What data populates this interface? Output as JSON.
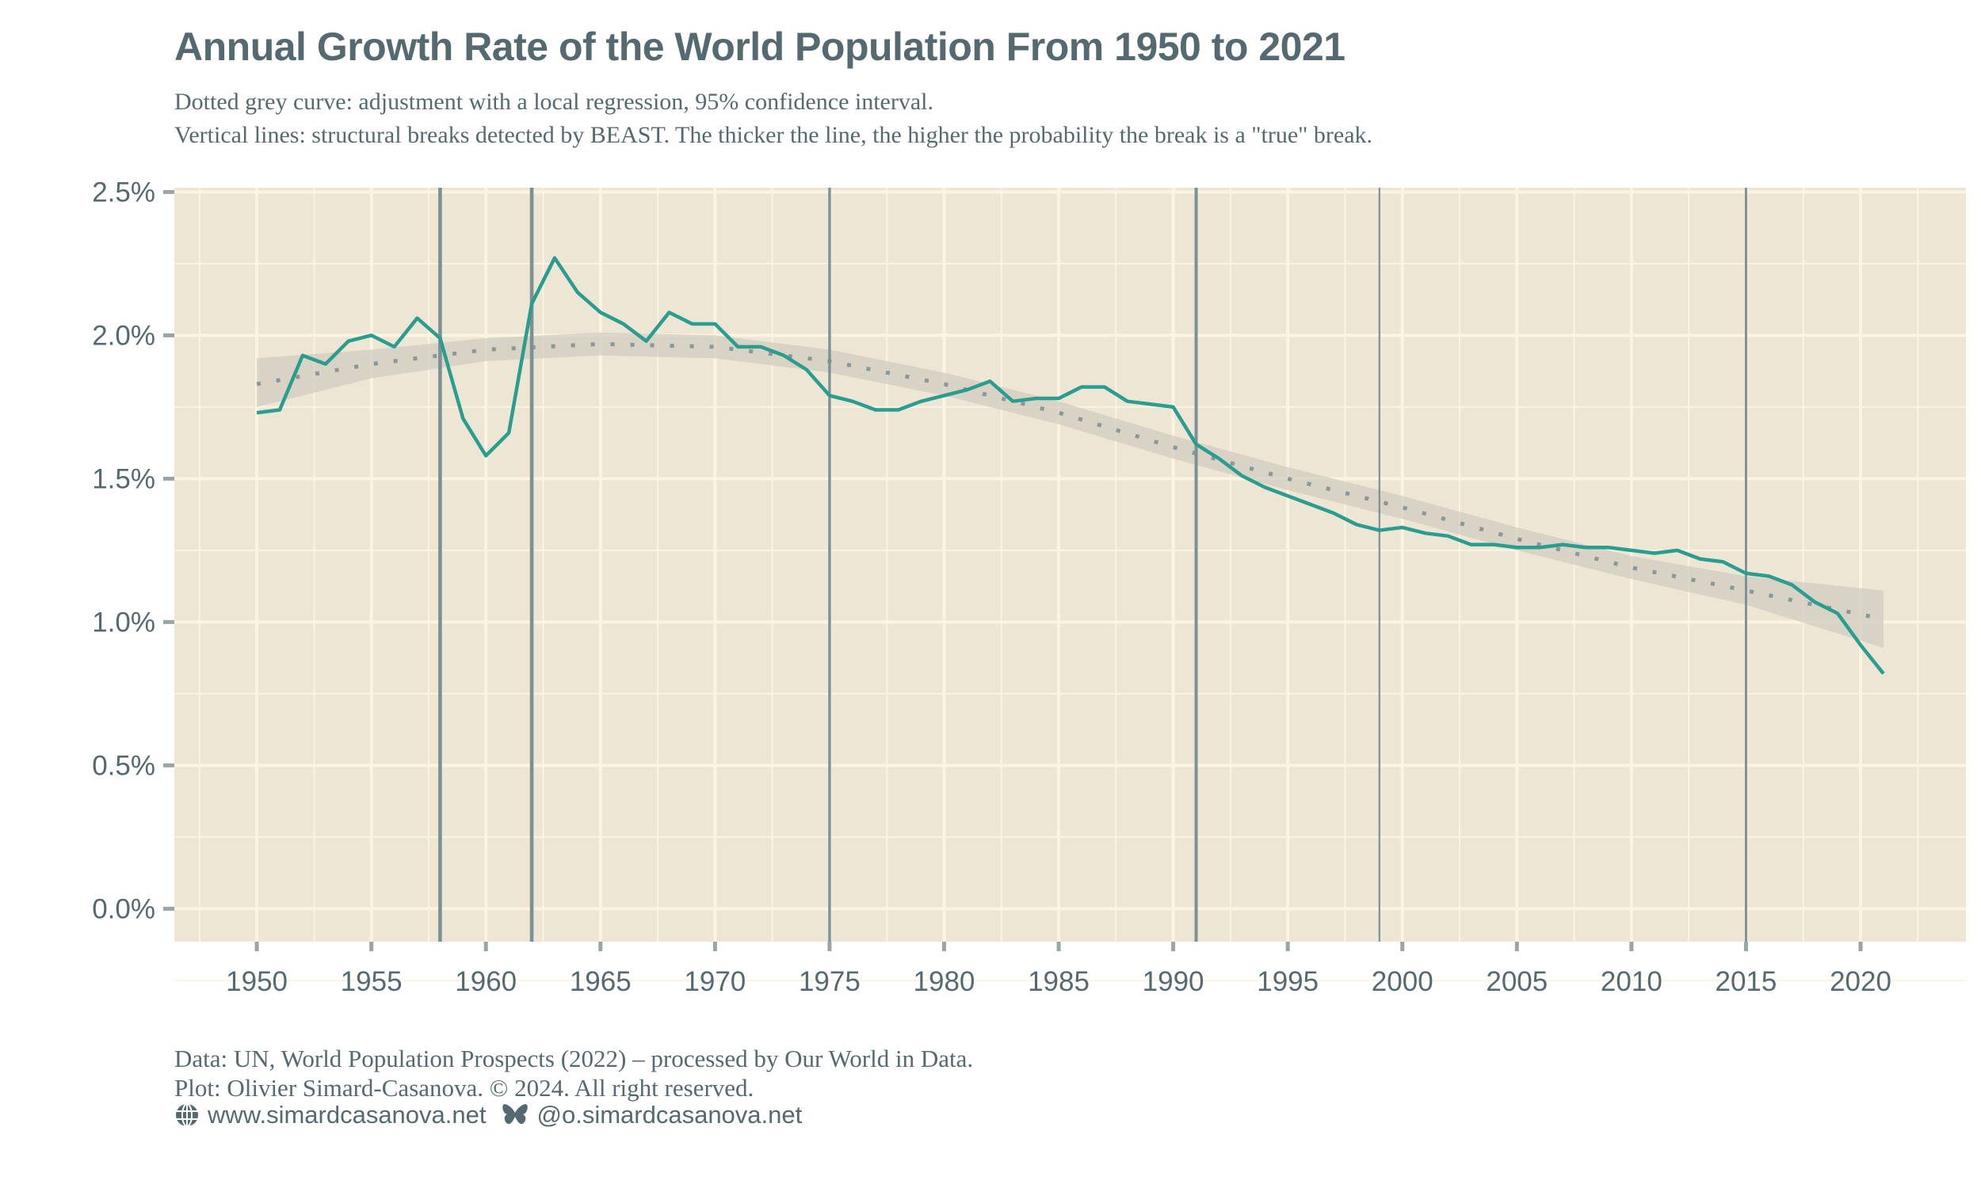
{
  "title": "Annual Growth Rate of the World Population From 1950 to 2021",
  "subtitle": [
    "Dotted grey curve: adjustment with a local regression, 95% confidence interval.",
    "Vertical lines: structural breaks detected by BEAST. The thicker the line, the higher the probability the break is a \"true\" break."
  ],
  "caption": [
    "Data: UN, World Population Prospects (2022) – processed by Our World in Data.",
    "Plot: Olivier Simard-Casanova. © 2024.  All right reserved."
  ],
  "social": {
    "website_icon": "globe-icon",
    "website": "www.simardcasanova.net",
    "bluesky_icon": "butterfly-icon",
    "bluesky": "@o.simardcasanova.net"
  },
  "colors": {
    "panel": "#ede6d4",
    "grid": "#fbf4e1",
    "series": "#2a9d8f",
    "breaks": "#7d9195",
    "band": "#cfcbbd",
    "trend": "#8a979b",
    "text": "#546a70"
  },
  "chart_data": {
    "type": "line",
    "title": "Annual Growth Rate of the World Population From 1950 to 2021",
    "xlabel": "",
    "ylabel": "",
    "xlim": [
      1946.4,
      2024.6
    ],
    "ylim": [
      -0.115,
      2.515
    ],
    "grid": true,
    "x_ticks": [
      "1950",
      "1955",
      "1960",
      "1965",
      "1970",
      "1975",
      "1980",
      "1985",
      "1990",
      "1995",
      "2000",
      "2005",
      "2010",
      "2015",
      "2020"
    ],
    "y_ticks": [
      {
        "value": 0.0,
        "label": "0.0%"
      },
      {
        "value": 0.5,
        "label": "0.5%"
      },
      {
        "value": 1.0,
        "label": "1.0%"
      },
      {
        "value": 1.5,
        "label": "1.5%"
      },
      {
        "value": 2.0,
        "label": "2.0%"
      },
      {
        "value": 2.5,
        "label": "2.5%"
      }
    ],
    "series": [
      {
        "x": [
          1950,
          1951,
          1952,
          1953,
          1954,
          1955,
          1956,
          1957,
          1958,
          1959,
          1960,
          1961,
          1962,
          1963,
          1964,
          1965,
          1966,
          1967,
          1968,
          1969,
          1970,
          1971,
          1972,
          1973,
          1974,
          1975,
          1976,
          1977,
          1978,
          1979,
          1980,
          1981,
          1982,
          1983,
          1984,
          1985,
          1986,
          1987,
          1988,
          1989,
          1990,
          1991,
          1992,
          1993,
          1994,
          1995,
          1996,
          1997,
          1998,
          1999,
          2000,
          2001,
          2002,
          2003,
          2004,
          2005,
          2006,
          2007,
          2008,
          2009,
          2010,
          2011,
          2012,
          2013,
          2014,
          2015,
          2016,
          2017,
          2018,
          2019,
          2020,
          2021
        ],
        "y": [
          1.73,
          1.74,
          1.93,
          1.9,
          1.98,
          2.0,
          1.96,
          2.06,
          1.99,
          1.71,
          1.58,
          1.66,
          2.11,
          2.27,
          2.15,
          2.08,
          2.04,
          1.98,
          2.08,
          2.04,
          2.04,
          1.96,
          1.96,
          1.93,
          1.88,
          1.79,
          1.77,
          1.74,
          1.74,
          1.77,
          1.79,
          1.81,
          1.84,
          1.77,
          1.78,
          1.78,
          1.82,
          1.82,
          1.77,
          1.76,
          1.75,
          1.62,
          1.57,
          1.51,
          1.47,
          1.44,
          1.41,
          1.38,
          1.34,
          1.32,
          1.33,
          1.31,
          1.3,
          1.27,
          1.27,
          1.26,
          1.26,
          1.27,
          1.26,
          1.26,
          1.25,
          1.24,
          1.25,
          1.22,
          1.21,
          1.17,
          1.16,
          1.13,
          1.07,
          1.03,
          0.92,
          0.82
        ]
      }
    ],
    "loess": {
      "x": [
        1950,
        1955,
        1960,
        1965,
        1970,
        1975,
        1980,
        1985,
        1990,
        1995,
        2000,
        2005,
        2010,
        2015,
        2021
      ],
      "y": [
        1.83,
        1.9,
        1.95,
        1.97,
        1.96,
        1.91,
        1.83,
        1.73,
        1.61,
        1.5,
        1.4,
        1.29,
        1.19,
        1.11,
        1.01
      ],
      "lower": [
        1.75,
        1.85,
        1.91,
        1.93,
        1.92,
        1.87,
        1.79,
        1.69,
        1.57,
        1.46,
        1.36,
        1.25,
        1.15,
        1.06,
        0.91
      ],
      "upper": [
        1.92,
        1.95,
        1.99,
        2.01,
        2.0,
        1.95,
        1.87,
        1.77,
        1.65,
        1.54,
        1.44,
        1.33,
        1.23,
        1.16,
        1.11
      ],
      "confidence": 0.95
    },
    "structural_breaks": [
      {
        "year": 1958,
        "probability": 0.9
      },
      {
        "year": 1962,
        "probability": 0.9
      },
      {
        "year": 1975,
        "probability": 0.6
      },
      {
        "year": 1991,
        "probability": 0.75
      },
      {
        "year": 1999,
        "probability": 0.3
      },
      {
        "year": 2015,
        "probability": 0.5
      }
    ]
  }
}
